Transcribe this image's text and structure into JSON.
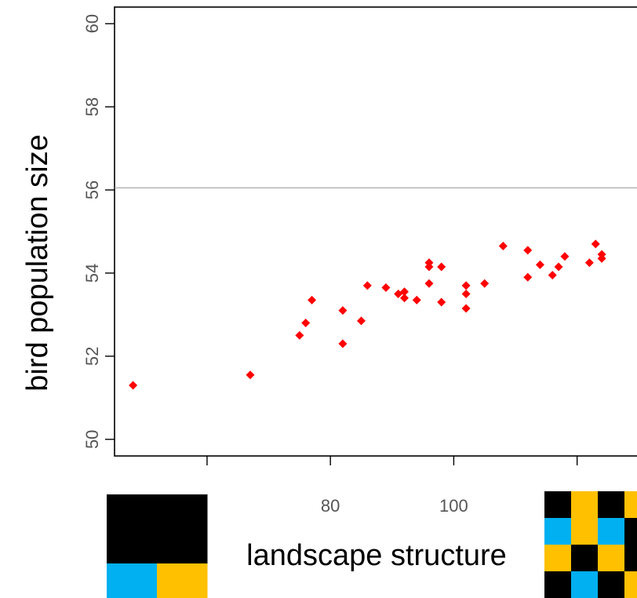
{
  "chart_data": {
    "type": "scatter",
    "title": "",
    "xlabel": "landscape structure",
    "ylabel": "bird population size",
    "xlim": [
      45,
      132
    ],
    "ylim": [
      49.6,
      60.4
    ],
    "yticks": [
      50,
      52,
      54,
      56,
      58,
      60
    ],
    "xticks": [
      60,
      80,
      100,
      120
    ],
    "xtick_labels_visible": [
      "80",
      "100"
    ],
    "hline": 56.05,
    "grid": false,
    "point_color": "#ff0000",
    "series": [
      {
        "points": [
          [
            48,
            51.3
          ],
          [
            67,
            51.55
          ],
          [
            75,
            52.5
          ],
          [
            76,
            52.8
          ],
          [
            77,
            53.35
          ],
          [
            82,
            53.1
          ],
          [
            82,
            52.3
          ],
          [
            85,
            52.85
          ],
          [
            86,
            53.7
          ],
          [
            89,
            53.65
          ],
          [
            91,
            53.5
          ],
          [
            92,
            53.55
          ],
          [
            92,
            53.4
          ],
          [
            94,
            53.35
          ],
          [
            96,
            54.25
          ],
          [
            96,
            54.15
          ],
          [
            96,
            53.75
          ],
          [
            98,
            54.15
          ],
          [
            98,
            53.3
          ],
          [
            102,
            53.7
          ],
          [
            102,
            53.5
          ],
          [
            102,
            53.15
          ],
          [
            105,
            53.75
          ],
          [
            108,
            54.65
          ],
          [
            112,
            54.55
          ],
          [
            112,
            53.9
          ],
          [
            114,
            54.2
          ],
          [
            116,
            53.95
          ],
          [
            117,
            54.15
          ],
          [
            118,
            54.4
          ],
          [
            122,
            54.25
          ],
          [
            123,
            54.7
          ],
          [
            124,
            54.45
          ],
          [
            124,
            54.35
          ]
        ]
      }
    ]
  },
  "legend_images": {
    "left": {
      "grid": [
        [
          "#000000",
          "#000000"
        ],
        [
          "#000000",
          "#000000"
        ],
        [
          "#00b0f0",
          "#ffc000"
        ]
      ]
    },
    "right": {
      "grid": [
        [
          "#000000",
          "#ffc000",
          "#000000",
          "#ffc000"
        ],
        [
          "#00b0f0",
          "#ffc000",
          "#00b0f0",
          "#000000"
        ],
        [
          "#ffc000",
          "#000000",
          "#ffc000",
          "#000000"
        ],
        [
          "#000000",
          "#00b0f0",
          "#000000",
          "#ffc000"
        ]
      ]
    }
  }
}
